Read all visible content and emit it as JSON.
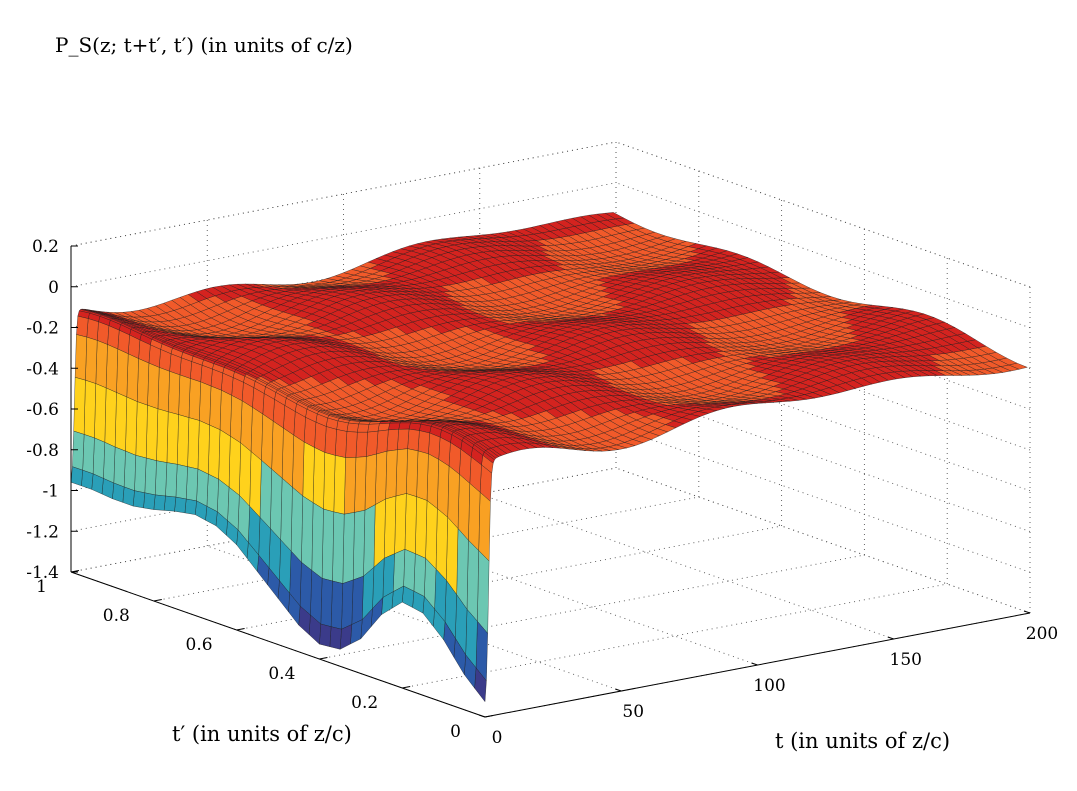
{
  "chart_data": {
    "type": "surface",
    "title": "P_S(z; t+t′, t′) (in units of c/z)",
    "xlabel": "t (in units of z/c)",
    "ylabel": "t′ (in units of z/c)",
    "zlabel": "",
    "x_range": [
      0,
      200
    ],
    "y_range": [
      0,
      1
    ],
    "zlim": [
      -1.4,
      0.2
    ],
    "grid": true,
    "x_ticks": [
      "0",
      "50",
      "100",
      "150",
      "200"
    ],
    "y_ticks": [
      "0",
      "0.2",
      "0.4",
      "0.6",
      "0.8",
      "1"
    ],
    "z_ticks": [
      "0.2",
      "0",
      "-0.2",
      "-0.4",
      "-0.6",
      "-0.8",
      "-1",
      "-1.2",
      "-1.4"
    ],
    "colormap": [
      "#3b3b8a",
      "#2c5aa8",
      "#2a9fb8",
      "#6cc7b2",
      "#ffd21c",
      "#f9a123",
      "#f15a2a",
      "#d4231f",
      "#9a2a20"
    ],
    "surface_edge_values": {
      "t_prime": [
        0,
        0.05,
        0.1,
        0.15,
        0.2,
        0.25,
        0.3,
        0.35,
        0.4,
        0.45,
        0.5,
        0.55,
        0.6,
        0.65,
        0.7,
        0.75,
        0.8,
        0.85,
        0.9,
        0.95,
        1
      ],
      "P_at_t0": [
        -1.38,
        -1.28,
        -1.14,
        -1.04,
        -1.02,
        -1.12,
        -1.28,
        -1.37,
        -1.38,
        -1.32,
        -1.22,
        -1.12,
        -1.02,
        -0.96,
        -0.94,
        -0.96,
        -0.99,
        -1.01,
        -1.01,
        -1.0,
        -1.0
      ]
    },
    "plateau_value_approx": -0.15
  }
}
